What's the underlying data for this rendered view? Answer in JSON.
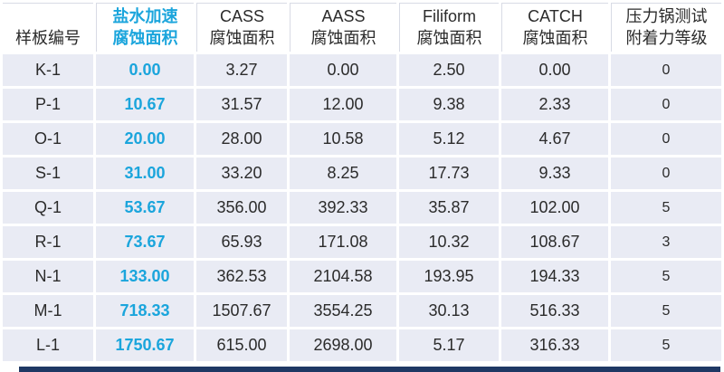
{
  "table": {
    "columns": [
      {
        "lines": [
          "样板编号"
        ],
        "accent": false
      },
      {
        "lines": [
          "盐水加速",
          "腐蚀面积"
        ],
        "accent": true
      },
      {
        "lines": [
          "CASS",
          "腐蚀面积"
        ],
        "accent": false
      },
      {
        "lines": [
          "AASS",
          "腐蚀面积"
        ],
        "accent": false
      },
      {
        "lines": [
          "Filiform",
          "腐蚀面积"
        ],
        "accent": false
      },
      {
        "lines": [
          "CATCH",
          "腐蚀面积"
        ],
        "accent": false
      },
      {
        "lines": [
          "压力锅测试",
          "附着力等级"
        ],
        "accent": false
      }
    ],
    "rows": [
      [
        "K-1",
        "0.00",
        "3.27",
        "0.00",
        "2.50",
        "0.00",
        "0"
      ],
      [
        "P-1",
        "10.67",
        "31.57",
        "12.00",
        "9.38",
        "2.33",
        "0"
      ],
      [
        "O-1",
        "20.00",
        "28.00",
        "10.58",
        "5.12",
        "4.67",
        "0"
      ],
      [
        "S-1",
        "31.00",
        "33.20",
        "8.25",
        "17.73",
        "9.33",
        "0"
      ],
      [
        "Q-1",
        "53.67",
        "356.00",
        "392.33",
        "35.87",
        "102.00",
        "5"
      ],
      [
        "R-1",
        "73.67",
        "65.93",
        "171.08",
        "10.32",
        "108.67",
        "3"
      ],
      [
        "N-1",
        "133.00",
        "362.53",
        "2104.58",
        "193.95",
        "194.33",
        "5"
      ],
      [
        "M-1",
        "718.33",
        "1507.67",
        "3554.25",
        "30.13",
        "516.33",
        "5"
      ],
      [
        "L-1",
        "1750.67",
        "615.00",
        "2698.00",
        "5.17",
        "316.33",
        "5"
      ]
    ],
    "colors": {
      "accent_text": "#1BA5DC",
      "row_fill": "#E9EBF4",
      "header_border": "#D8DBE5",
      "body_text": "#2B2B2B",
      "bottom_bar": "#1F3864"
    }
  }
}
